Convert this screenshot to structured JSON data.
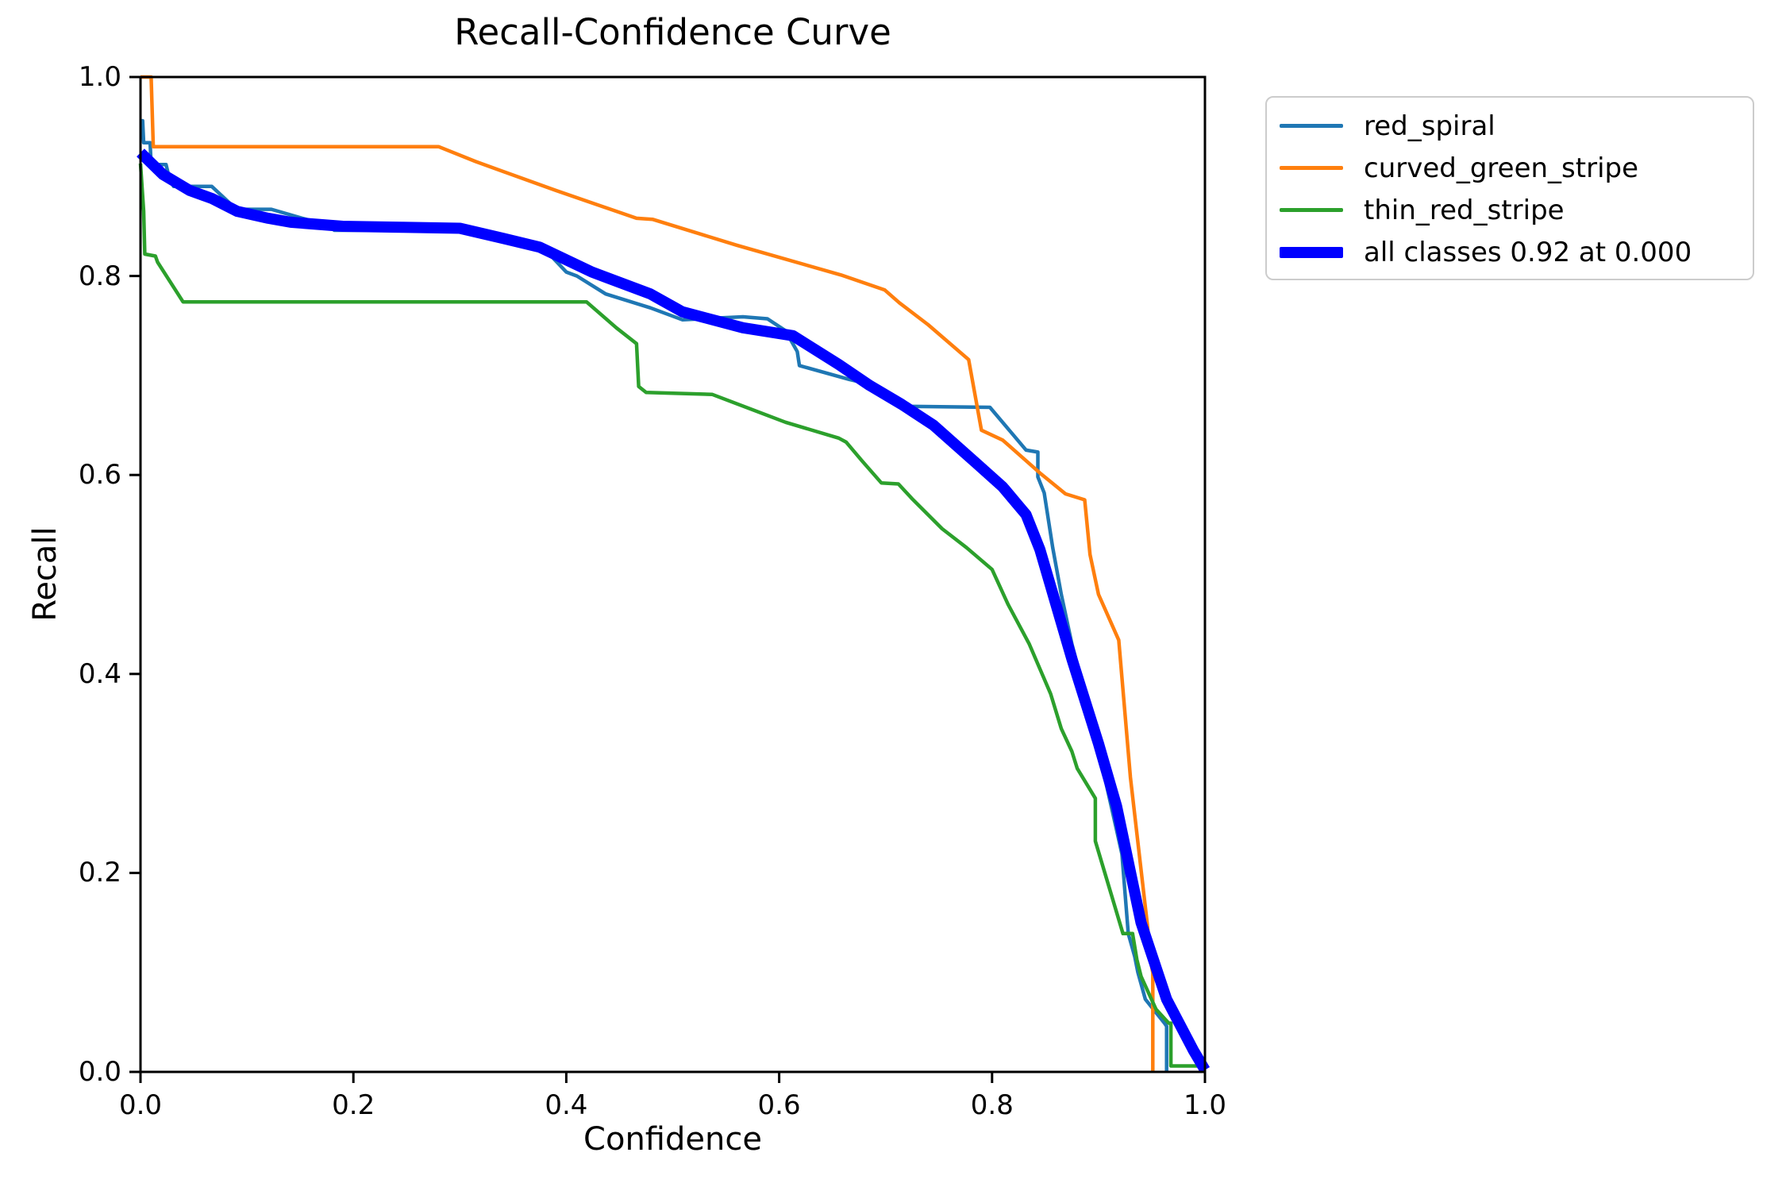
{
  "figure": {
    "background": "#ffffff"
  },
  "title": "Recall-Confidence Curve",
  "axes": {
    "xlabel": "Confidence",
    "ylabel": "Recall",
    "x_tick_labels": [
      "0.0",
      "0.2",
      "0.4",
      "0.6",
      "0.8",
      "1.0"
    ],
    "y_tick_labels": [
      "0.0",
      "0.2",
      "0.4",
      "0.6",
      "0.8",
      "1.0"
    ],
    "spine_color": "#000000"
  },
  "legend": {
    "entries": [
      {
        "label": "red_spiral",
        "color": "#1f77b4",
        "sample_thickness": 5
      },
      {
        "label": "curved_green_stripe",
        "color": "#ff7f0e",
        "sample_thickness": 5
      },
      {
        "label": "thin_red_stripe",
        "color": "#2ca02c",
        "sample_thickness": 5
      },
      {
        "label": "all classes 0.92 at 0.000",
        "color": "#0000ff",
        "sample_thickness": 14
      }
    ]
  },
  "chart_data": {
    "type": "line",
    "title": "Recall-Confidence Curve",
    "xlabel": "Confidence",
    "ylabel": "Recall",
    "xlim": [
      0.0,
      1.0
    ],
    "ylim": [
      0.0,
      1.0
    ],
    "x_ticks": [
      0.0,
      0.2,
      0.4,
      0.6,
      0.8,
      1.0
    ],
    "y_ticks": [
      0.0,
      0.2,
      0.4,
      0.6,
      0.8,
      1.0
    ],
    "grid": false,
    "legend_position": "outside-upper-right",
    "series": [
      {
        "name": "red_spiral",
        "color": "#1f77b4",
        "line_width": 4.5,
        "points": [
          [
            0.0,
            0.956
          ],
          [
            0.002,
            0.956
          ],
          [
            0.003,
            0.934
          ],
          [
            0.009,
            0.934
          ],
          [
            0.01,
            0.912
          ],
          [
            0.024,
            0.912
          ],
          [
            0.026,
            0.903
          ],
          [
            0.031,
            0.89
          ],
          [
            0.067,
            0.89
          ],
          [
            0.09,
            0.867
          ],
          [
            0.123,
            0.867
          ],
          [
            0.152,
            0.858
          ],
          [
            0.177,
            0.851
          ],
          [
            0.182,
            0.846
          ],
          [
            0.3,
            0.846
          ],
          [
            0.34,
            0.84
          ],
          [
            0.385,
            0.821
          ],
          [
            0.4,
            0.804
          ],
          [
            0.41,
            0.8
          ],
          [
            0.437,
            0.782
          ],
          [
            0.479,
            0.768
          ],
          [
            0.509,
            0.756
          ],
          [
            0.566,
            0.759
          ],
          [
            0.589,
            0.757
          ],
          [
            0.606,
            0.745
          ],
          [
            0.617,
            0.724
          ],
          [
            0.619,
            0.71
          ],
          [
            0.666,
            0.696
          ],
          [
            0.678,
            0.693
          ],
          [
            0.7,
            0.68
          ],
          [
            0.72,
            0.669
          ],
          [
            0.798,
            0.668
          ],
          [
            0.832,
            0.625
          ],
          [
            0.843,
            0.623
          ],
          [
            0.843,
            0.598
          ],
          [
            0.849,
            0.582
          ],
          [
            0.857,
            0.527
          ],
          [
            0.865,
            0.48
          ],
          [
            0.875,
            0.43
          ],
          [
            0.89,
            0.37
          ],
          [
            0.905,
            0.3
          ],
          [
            0.917,
            0.243
          ],
          [
            0.922,
            0.219
          ],
          [
            0.928,
            0.139
          ],
          [
            0.934,
            0.116
          ],
          [
            0.937,
            0.1
          ],
          [
            0.944,
            0.073
          ],
          [
            0.962,
            0.049
          ],
          [
            0.964,
            0.046
          ],
          [
            0.964,
            0.0
          ]
        ]
      },
      {
        "name": "curved_green_stripe",
        "color": "#ff7f0e",
        "line_width": 4.5,
        "points": [
          [
            0.0,
            1.0
          ],
          [
            0.01,
            1.0
          ],
          [
            0.012,
            0.93
          ],
          [
            0.28,
            0.93
          ],
          [
            0.315,
            0.915
          ],
          [
            0.39,
            0.886
          ],
          [
            0.466,
            0.858
          ],
          [
            0.481,
            0.857
          ],
          [
            0.56,
            0.831
          ],
          [
            0.658,
            0.801
          ],
          [
            0.699,
            0.786
          ],
          [
            0.713,
            0.773
          ],
          [
            0.74,
            0.751
          ],
          [
            0.778,
            0.716
          ],
          [
            0.79,
            0.645
          ],
          [
            0.81,
            0.635
          ],
          [
            0.845,
            0.602
          ],
          [
            0.869,
            0.581
          ],
          [
            0.887,
            0.575
          ],
          [
            0.892,
            0.52
          ],
          [
            0.9,
            0.48
          ],
          [
            0.919,
            0.434
          ],
          [
            0.93,
            0.296
          ],
          [
            0.946,
            0.147
          ],
          [
            0.949,
            0.111
          ],
          [
            0.951,
            0.1
          ],
          [
            0.951,
            0.0
          ]
        ]
      },
      {
        "name": "thin_red_stripe",
        "color": "#2ca02c",
        "line_width": 4.5,
        "points": [
          [
            0.0,
            0.913
          ],
          [
            0.003,
            0.865
          ],
          [
            0.004,
            0.822
          ],
          [
            0.014,
            0.82
          ],
          [
            0.016,
            0.814
          ],
          [
            0.04,
            0.774
          ],
          [
            0.419,
            0.774
          ],
          [
            0.447,
            0.748
          ],
          [
            0.466,
            0.732
          ],
          [
            0.468,
            0.689
          ],
          [
            0.475,
            0.683
          ],
          [
            0.537,
            0.681
          ],
          [
            0.606,
            0.653
          ],
          [
            0.656,
            0.637
          ],
          [
            0.663,
            0.633
          ],
          [
            0.678,
            0.614
          ],
          [
            0.696,
            0.592
          ],
          [
            0.712,
            0.591
          ],
          [
            0.725,
            0.576
          ],
          [
            0.753,
            0.546
          ],
          [
            0.776,
            0.527
          ],
          [
            0.8,
            0.505
          ],
          [
            0.815,
            0.47
          ],
          [
            0.835,
            0.43
          ],
          [
            0.855,
            0.38
          ],
          [
            0.865,
            0.345
          ],
          [
            0.875,
            0.322
          ],
          [
            0.88,
            0.305
          ],
          [
            0.897,
            0.275
          ],
          [
            0.897,
            0.232
          ],
          [
            0.923,
            0.139
          ],
          [
            0.932,
            0.139
          ],
          [
            0.936,
            0.113
          ],
          [
            0.94,
            0.096
          ],
          [
            0.954,
            0.063
          ],
          [
            0.966,
            0.049
          ],
          [
            0.968,
            0.049
          ],
          [
            0.968,
            0.006
          ],
          [
            0.996,
            0.006
          ],
          [
            0.997,
            0.0
          ]
        ]
      },
      {
        "name": "all classes 0.92 at 0.000",
        "color": "#0000ff",
        "line_width": 14,
        "points": [
          [
            0.0,
            0.924
          ],
          [
            0.021,
            0.902
          ],
          [
            0.046,
            0.886
          ],
          [
            0.067,
            0.878
          ],
          [
            0.091,
            0.865
          ],
          [
            0.12,
            0.858
          ],
          [
            0.141,
            0.854
          ],
          [
            0.19,
            0.85
          ],
          [
            0.246,
            0.849
          ],
          [
            0.3,
            0.848
          ],
          [
            0.34,
            0.838
          ],
          [
            0.375,
            0.829
          ],
          [
            0.424,
            0.804
          ],
          [
            0.479,
            0.782
          ],
          [
            0.509,
            0.764
          ],
          [
            0.566,
            0.748
          ],
          [
            0.613,
            0.74
          ],
          [
            0.656,
            0.711
          ],
          [
            0.685,
            0.69
          ],
          [
            0.715,
            0.671
          ],
          [
            0.745,
            0.65
          ],
          [
            0.785,
            0.612
          ],
          [
            0.81,
            0.588
          ],
          [
            0.832,
            0.56
          ],
          [
            0.845,
            0.525
          ],
          [
            0.875,
            0.415
          ],
          [
            0.9,
            0.33
          ],
          [
            0.917,
            0.267
          ],
          [
            0.94,
            0.15
          ],
          [
            0.964,
            0.073
          ],
          [
            0.989,
            0.022
          ],
          [
            1.0,
            0.002
          ]
        ]
      }
    ]
  }
}
